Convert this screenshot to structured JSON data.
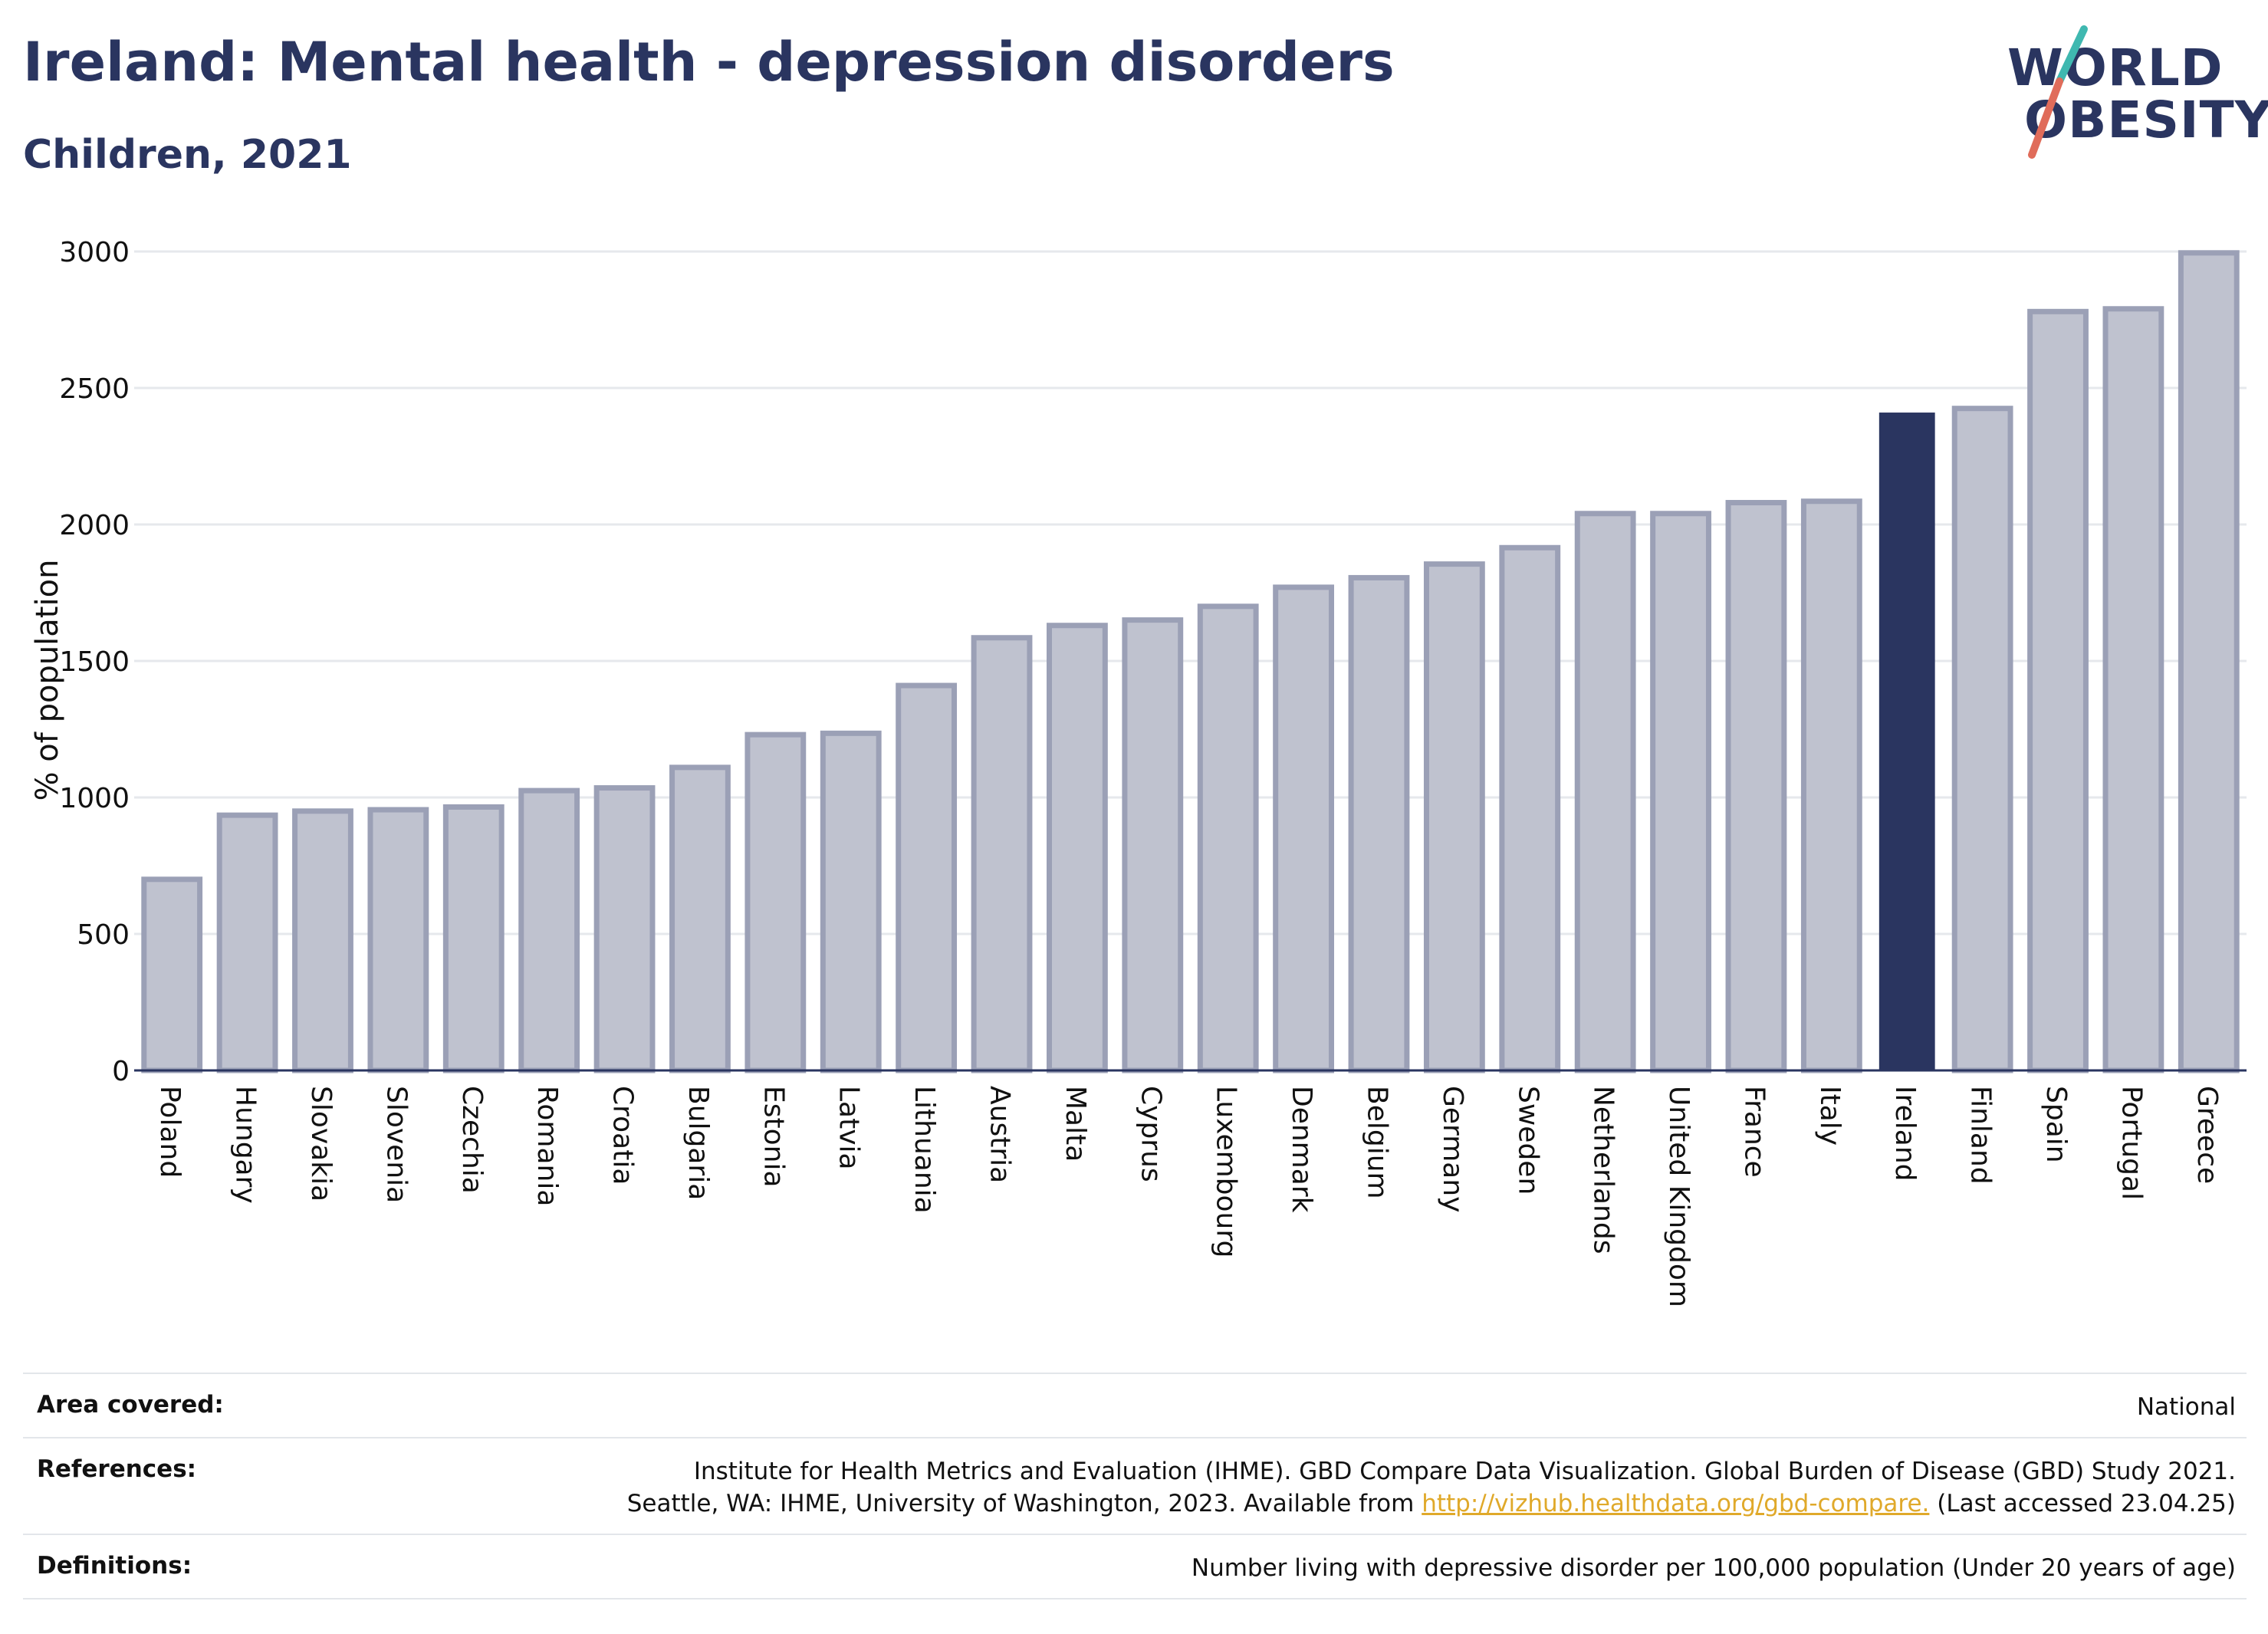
{
  "header": {
    "title": "Ireland: Mental health - depression disorders",
    "subtitle": "Children, 2021"
  },
  "logo": {
    "line1": "WORLD",
    "line2": "OBESITY",
    "accent_colors": [
      "#3fb8b0",
      "#e06c5a"
    ]
  },
  "colors": {
    "highlight": "#2a3560",
    "bar_fill": "#bfc2cf",
    "bar_stroke": "#9ba0b6",
    "grid": "#e6e8ec",
    "axis": "#2a3560"
  },
  "chart_data": {
    "type": "bar",
    "ylabel": "% of population",
    "ylim": [
      0,
      3000
    ],
    "yticks": [
      0,
      500,
      1000,
      1500,
      2000,
      2500,
      3000
    ],
    "grid": true,
    "highlight": "Ireland",
    "categories": [
      "Poland",
      "Hungary",
      "Slovakia",
      "Slovenia",
      "Czechia",
      "Romania",
      "Croatia",
      "Bulgaria",
      "Estonia",
      "Latvia",
      "Lithuania",
      "Austria",
      "Malta",
      "Cyprus",
      "Luxembourg",
      "Denmark",
      "Belgium",
      "Germany",
      "Sweden",
      "Netherlands",
      "United Kingdom",
      "France",
      "Italy",
      "Ireland",
      "Finland",
      "Spain",
      "Portugal",
      "Greece"
    ],
    "values": [
      700,
      935,
      950,
      955,
      965,
      1025,
      1035,
      1110,
      1230,
      1235,
      1410,
      1585,
      1630,
      1650,
      1700,
      1770,
      1805,
      1855,
      1915,
      2040,
      2040,
      2080,
      2085,
      2410,
      2425,
      2780,
      2790,
      2995
    ]
  },
  "footer": {
    "area_label": "Area covered:",
    "area_value": "National",
    "references_label": "References:",
    "references_line1": "Institute for Health Metrics and Evaluation (IHME). GBD Compare Data Visualization. Global Burden of Disease (GBD) Study 2021.",
    "references_line2_pre": "Seattle, WA: IHME, University of Washington, 2023. Available from ",
    "references_link": "http://vizhub.healthdata.org/gbd-compare.",
    "references_line2_post": " (Last accessed 23.04.25)",
    "definitions_label": "Definitions:",
    "definitions_value": "Number living with depressive disorder per 100,000 population (Under 20 years of age)"
  }
}
